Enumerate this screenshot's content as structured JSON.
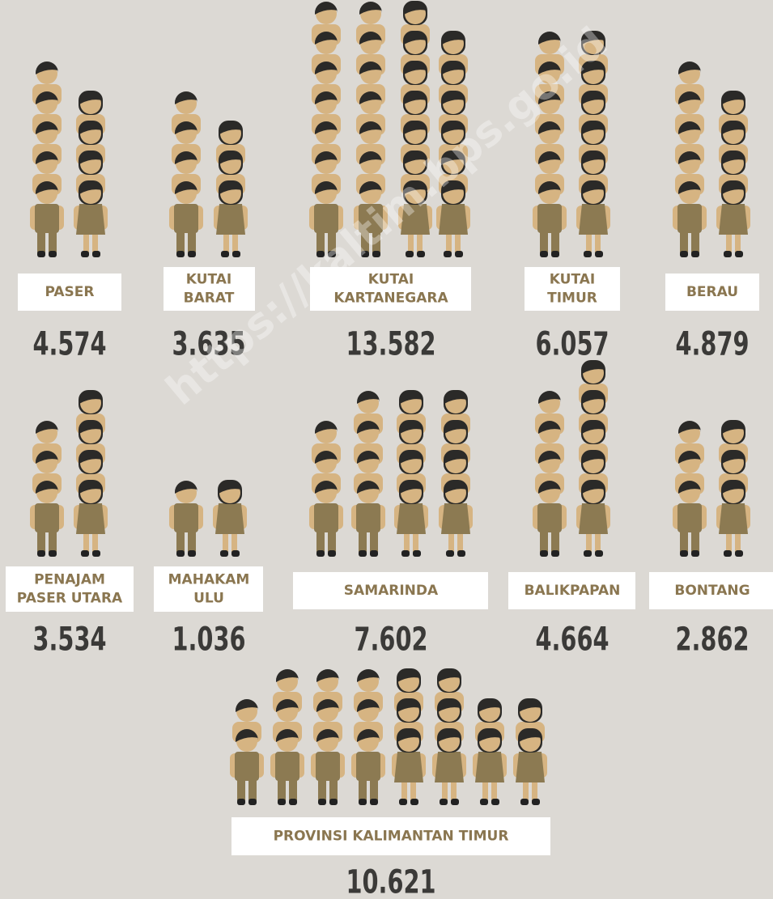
{
  "watermark": "https://kaltim.bps.go.id",
  "regions": [
    {
      "name_lines": [
        "PASER"
      ],
      "value": "4.574"
    },
    {
      "name_lines": [
        "KUTAI",
        "BARAT"
      ],
      "value": "3.635"
    },
    {
      "name_lines": [
        "KUTAI",
        "KARTANEGARA"
      ],
      "value": "13.582"
    },
    {
      "name_lines": [
        "KUTAI",
        "TIMUR"
      ],
      "value": "6.057"
    },
    {
      "name_lines": [
        "BERAU"
      ],
      "value": "4.879"
    },
    {
      "name_lines": [
        "PENAJAM",
        "PASER UTARA"
      ],
      "value": "3.534"
    },
    {
      "name_lines": [
        "MAHAKAM",
        "ULU"
      ],
      "value": "1.036"
    },
    {
      "name_lines": [
        "SAMARINDA"
      ],
      "value": "7.602"
    },
    {
      "name_lines": [
        "BALIKPAPAN"
      ],
      "value": "4.664"
    },
    {
      "name_lines": [
        "BONTANG"
      ],
      "value": "2.862"
    },
    {
      "name_lines": [
        "PROVINSI KALIMANTAN TIMUR"
      ],
      "value": "10.621"
    }
  ]
}
